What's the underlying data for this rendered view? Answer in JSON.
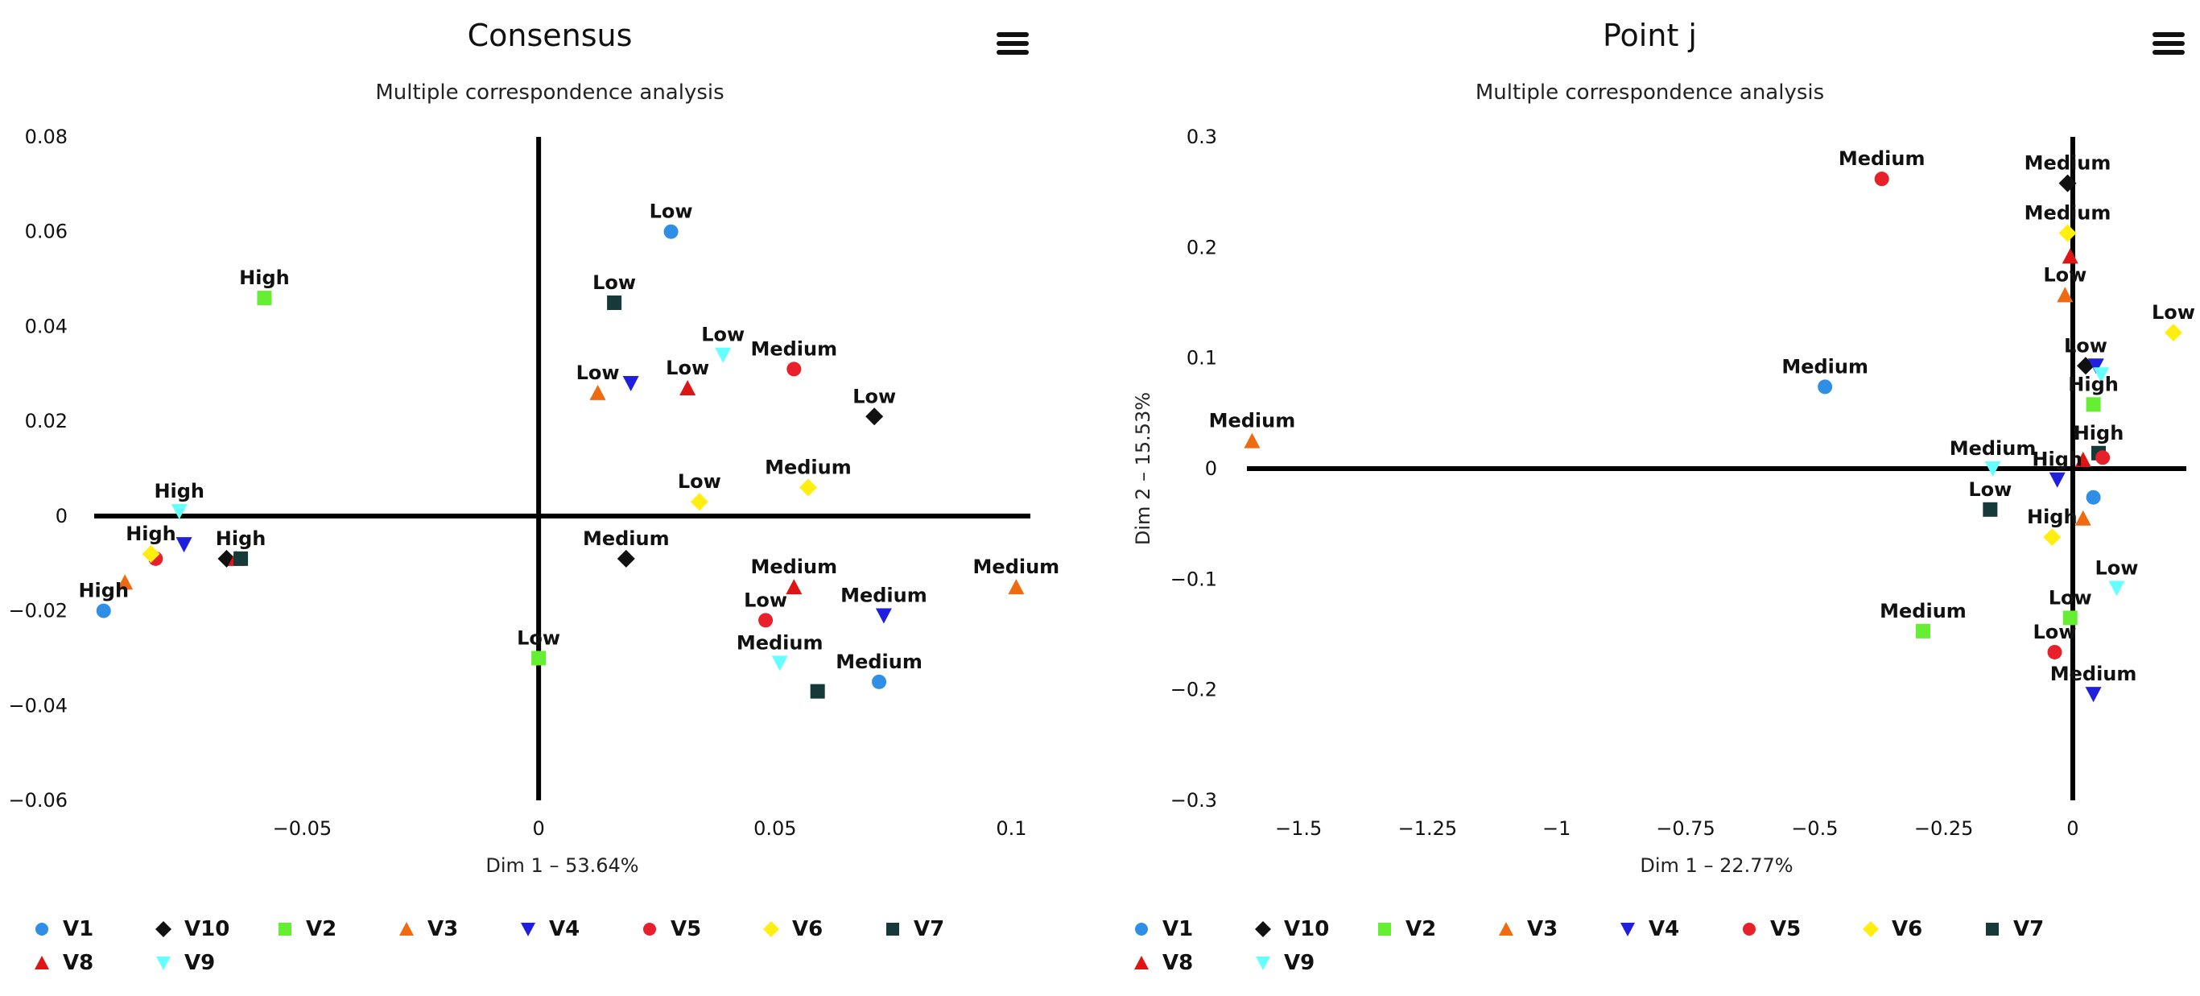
{
  "series_styles": {
    "V1": {
      "color": "#2f8ee5",
      "symbol": "circle"
    },
    "V10": {
      "color": "#111111",
      "symbol": "diamond"
    },
    "V2": {
      "color": "#66ee33",
      "symbol": "square"
    },
    "V3": {
      "color": "#ef6a10",
      "symbol": "triangle"
    },
    "V4": {
      "color": "#1f1fdd",
      "symbol": "triangle-down"
    },
    "V5": {
      "color": "#e8202a",
      "symbol": "circle"
    },
    "V6": {
      "color": "#ffee10",
      "symbol": "diamond"
    },
    "V7": {
      "color": "#163a3a",
      "symbol": "square"
    },
    "V8": {
      "color": "#dd1515",
      "symbol": "triangle"
    },
    "V9": {
      "color": "#66ffff",
      "symbol": "triangle-down"
    }
  },
  "legend_order": [
    "V1",
    "V10",
    "V2",
    "V3",
    "V4",
    "V5",
    "V6",
    "V7",
    "V8",
    "V9"
  ],
  "chart_data": [
    {
      "type": "scatter",
      "title": "Consensus",
      "subtitle": "Multiple correspondence analysis",
      "xlabel": "Dim 1 – 53.64%",
      "ylabel": "",
      "xlim": [
        -0.094,
        0.104
      ],
      "ylim": [
        -0.06,
        0.08
      ],
      "xticks": [
        -0.05,
        0,
        0.05,
        0.1
      ],
      "yticks": [
        0.08,
        0.06,
        0.04,
        0.02,
        0,
        -0.02,
        -0.04,
        -0.06
      ],
      "xtick_labels": [
        "−0.05",
        "0",
        "0.05",
        "0.1"
      ],
      "ytick_labels": [
        "0.08",
        "0.06",
        "0.04",
        "0.02",
        "0",
        "−0.02",
        "−0.04",
        "−0.06"
      ],
      "points": [
        {
          "series": "V1",
          "label": "Low",
          "x": 0.028,
          "y": 0.06
        },
        {
          "series": "V7",
          "label": "Low",
          "x": 0.016,
          "y": 0.045
        },
        {
          "series": "V2",
          "label": "High",
          "x": -0.058,
          "y": 0.046
        },
        {
          "series": "V9",
          "label": "Low",
          "x": 0.039,
          "y": 0.034
        },
        {
          "series": "V5",
          "label": "Medium",
          "x": 0.054,
          "y": 0.031
        },
        {
          "series": "V3",
          "label": "Low",
          "x": 0.0125,
          "y": 0.026
        },
        {
          "series": "V4",
          "label": "",
          "x": 0.0195,
          "y": 0.028
        },
        {
          "series": "V8",
          "label": "Low",
          "x": 0.0315,
          "y": 0.027
        },
        {
          "series": "V10",
          "label": "Low",
          "x": 0.071,
          "y": 0.021
        },
        {
          "series": "V6",
          "label": "Medium",
          "x": 0.057,
          "y": 0.006
        },
        {
          "series": "V6",
          "label": "Low",
          "x": 0.034,
          "y": 0.003
        },
        {
          "series": "V9",
          "label": "High",
          "x": -0.076,
          "y": 0.001
        },
        {
          "series": "V4",
          "label": "",
          "x": -0.075,
          "y": -0.006
        },
        {
          "series": "V5",
          "label": "",
          "x": -0.081,
          "y": -0.009
        },
        {
          "series": "V6",
          "label": "High",
          "x": -0.082,
          "y": -0.008
        },
        {
          "series": "V10",
          "label": "",
          "x": -0.066,
          "y": -0.009
        },
        {
          "series": "V8",
          "label": "",
          "x": -0.064,
          "y": -0.009
        },
        {
          "series": "V7",
          "label": "High",
          "x": -0.063,
          "y": -0.009
        },
        {
          "series": "V10",
          "label": "Medium",
          "x": 0.0185,
          "y": -0.009
        },
        {
          "series": "V3",
          "label": "",
          "x": -0.0875,
          "y": -0.014
        },
        {
          "series": "V1",
          "label": "High",
          "x": -0.092,
          "y": -0.02
        },
        {
          "series": "V3",
          "label": "Medium",
          "x": 0.101,
          "y": -0.015
        },
        {
          "series": "V8",
          "label": "Medium",
          "x": 0.054,
          "y": -0.015
        },
        {
          "series": "V4",
          "label": "Medium",
          "x": 0.073,
          "y": -0.021
        },
        {
          "series": "V5",
          "label": "Low",
          "x": 0.048,
          "y": -0.022
        },
        {
          "series": "V2",
          "label": "Low",
          "x": 0.0,
          "y": -0.03
        },
        {
          "series": "V9",
          "label": "Medium",
          "x": 0.051,
          "y": -0.031
        },
        {
          "series": "V1",
          "label": "Medium",
          "x": 0.072,
          "y": -0.035
        },
        {
          "series": "V7",
          "label": "",
          "x": 0.059,
          "y": -0.037
        }
      ]
    },
    {
      "type": "scatter",
      "title": "Point j",
      "subtitle": "Multiple correspondence analysis",
      "xlabel": "Dim 1 – 22.77%",
      "ylabel": "Dim 2 – 15.53%",
      "xlim": [
        -1.6,
        0.22
      ],
      "ylim": [
        -0.3,
        0.3
      ],
      "xticks": [
        -1.5,
        -1.25,
        -1,
        -0.75,
        -0.5,
        -0.25,
        0
      ],
      "yticks": [
        0.3,
        0.2,
        0.1,
        0,
        -0.1,
        -0.2,
        -0.3
      ],
      "xtick_labels": [
        "−1.5",
        "−1.25",
        "−1",
        "−0.75",
        "−0.5",
        "−0.25",
        "0"
      ],
      "ytick_labels": [
        "0.3",
        "0.2",
        "0.1",
        "0",
        "−0.1",
        "−0.2",
        "−0.3"
      ],
      "points": [
        {
          "series": "V5",
          "label": "Medium",
          "x": -0.37,
          "y": 0.262
        },
        {
          "series": "V10",
          "label": "Medium",
          "x": -0.01,
          "y": 0.258
        },
        {
          "series": "V6",
          "label": "Medium",
          "x": -0.01,
          "y": 0.213
        },
        {
          "series": "V8",
          "label": "",
          "x": -0.005,
          "y": 0.192
        },
        {
          "series": "V3",
          "label": "Low",
          "x": -0.015,
          "y": 0.157
        },
        {
          "series": "V6",
          "label": "Low",
          "x": 0.195,
          "y": 0.123
        },
        {
          "series": "V10",
          "label": "Low",
          "x": 0.025,
          "y": 0.093
        },
        {
          "series": "V4",
          "label": "",
          "x": 0.045,
          "y": 0.093
        },
        {
          "series": "V9",
          "label": "",
          "x": 0.055,
          "y": 0.085
        },
        {
          "series": "V1",
          "label": "Medium",
          "x": -0.48,
          "y": 0.074
        },
        {
          "series": "V2",
          "label": "High",
          "x": 0.04,
          "y": 0.058
        },
        {
          "series": "V3",
          "label": "Medium",
          "x": -1.59,
          "y": 0.025
        },
        {
          "series": "V7",
          "label": "High",
          "x": 0.05,
          "y": 0.014
        },
        {
          "series": "V5",
          "label": "",
          "x": 0.058,
          "y": 0.01
        },
        {
          "series": "V8",
          "label": "",
          "x": 0.02,
          "y": 0.008
        },
        {
          "series": "V9",
          "label": "Medium",
          "x": -0.155,
          "y": 0.0
        },
        {
          "series": "V4",
          "label": "High",
          "x": -0.03,
          "y": -0.01
        },
        {
          "series": "V1",
          "label": "",
          "x": 0.04,
          "y": -0.026
        },
        {
          "series": "V7",
          "label": "Low",
          "x": -0.16,
          "y": -0.037
        },
        {
          "series": "V3",
          "label": "",
          "x": 0.02,
          "y": -0.045
        },
        {
          "series": "V6",
          "label": "High",
          "x": -0.04,
          "y": -0.062
        },
        {
          "series": "V9",
          "label": "Low",
          "x": 0.085,
          "y": -0.108
        },
        {
          "series": "V2",
          "label": "Medium",
          "x": -0.29,
          "y": -0.147
        },
        {
          "series": "V2",
          "label": "Low",
          "x": -0.005,
          "y": -0.135
        },
        {
          "series": "V5",
          "label": "Low",
          "x": -0.035,
          "y": -0.166
        },
        {
          "series": "V4",
          "label": "Medium",
          "x": 0.04,
          "y": -0.204
        }
      ]
    }
  ]
}
